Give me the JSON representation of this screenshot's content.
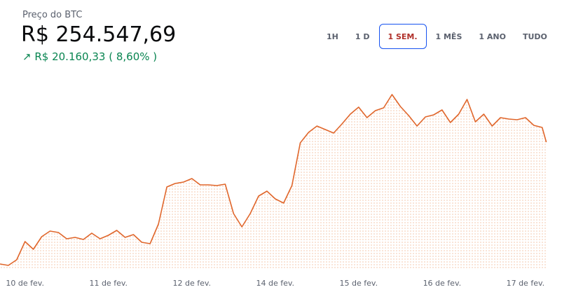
{
  "header": {
    "label": "Preço do BTC",
    "price": "R$ 254.547,69",
    "change_arrow": "↗",
    "change": "R$ 20.160,33",
    "change_percent": "( 8,60% )"
  },
  "range_buttons": [
    "1H",
    "1 D",
    "1 SEM.",
    "1 MÊS",
    "1 ANO",
    "TUDO"
  ],
  "selected_button": 2,
  "chart_data": {
    "type": "line",
    "color": "#e0662b",
    "x": [
      -0.3,
      -0.2,
      -0.1,
      0,
      0.1,
      0.2,
      0.3,
      0.4,
      0.5,
      0.6,
      0.7,
      0.8,
      0.9,
      1,
      1.1,
      1.2,
      1.3,
      1.4,
      1.5,
      1.6,
      1.7,
      1.8,
      1.9,
      2,
      2.1,
      2.2,
      2.3,
      2.4,
      2.5,
      2.6,
      2.7,
      2.8,
      2.9,
      3,
      3.1,
      3.2,
      3.3,
      3.4,
      3.5,
      3.6,
      3.7,
      3.8,
      3.9,
      4,
      4.1,
      4.2,
      4.3,
      4.4,
      4.5,
      4.6,
      4.7,
      4.8,
      4.9,
      5,
      5.1,
      5.2,
      5.3,
      5.4,
      5.5,
      5.6,
      5.7,
      5.8,
      5.9,
      6,
      6.1,
      6.2,
      6.25
    ],
    "series": [
      {
        "name": "BTC",
        "color": "#e0662b",
        "values": [
          234387.36,
          234156,
          235082,
          238096,
          236821,
          238907,
          239834,
          239603,
          238559,
          238791,
          238444,
          239487,
          238559,
          239139,
          239950,
          238791,
          239255,
          237980,
          237748,
          240993,
          247136,
          247716,
          247947,
          248527,
          247484,
          247484,
          247368,
          247600,
          242732,
          240530,
          242732,
          245629,
          246441,
          245166,
          244470,
          247368,
          254438,
          256176,
          257219,
          256640,
          256060,
          257567,
          259190,
          260349,
          258610,
          259769,
          260233,
          262435,
          260465,
          258958,
          257219,
          258726,
          259074,
          259885,
          257799,
          259190,
          261624,
          257915,
          259190,
          257219,
          258610,
          258378,
          258262,
          258610,
          257335,
          256988,
          254547.69
        ]
      }
    ],
    "xlim": [
      -0.3,
      6.27
    ],
    "ylim": [
      233460,
      265332
    ],
    "xticks": [
      {
        "value": 0,
        "label": "10 de fev."
      },
      {
        "value": 1,
        "label": "11 de fev."
      },
      {
        "value": 2,
        "label": "12 de fev."
      },
      {
        "value": 3,
        "label": "14 de fev."
      },
      {
        "value": 4,
        "label": "15 de fev."
      },
      {
        "value": 5,
        "label": "16 de fev."
      },
      {
        "value": 6,
        "label": "17 de fev."
      }
    ],
    "grid": false
  }
}
